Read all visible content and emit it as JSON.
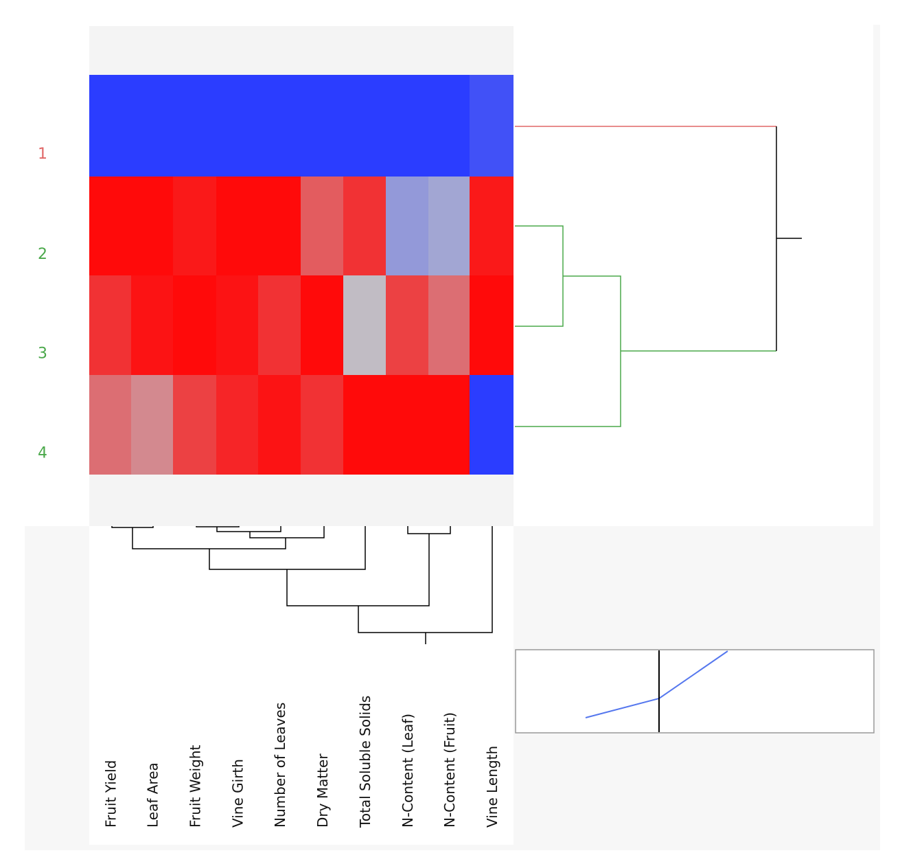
{
  "chart_data": {
    "type": "heatmap",
    "title": "",
    "rows": [
      {
        "label": "1",
        "cluster_color": "#e06666"
      },
      {
        "label": "2",
        "cluster_color": "#4aa84a"
      },
      {
        "label": "3",
        "cluster_color": "#4aa84a"
      },
      {
        "label": "4",
        "cluster_color": "#4aa84a"
      }
    ],
    "columns": [
      "Fruit Yield",
      "Leaf Area",
      "Fruit Weight",
      "Vine Girth",
      "Number of Leaves",
      "Dry Matter",
      "Total Soluble Solids",
      "N-Content (Leaf)",
      "N-Content (Fruit)",
      "Vine Length"
    ],
    "values": [
      [
        -1.0,
        -1.0,
        -1.0,
        -1.0,
        -1.0,
        -1.0,
        -1.0,
        -1.0,
        -1.0,
        -0.85
      ],
      [
        1.0,
        1.0,
        0.92,
        1.0,
        1.0,
        0.55,
        0.78,
        -0.3,
        -0.2,
        0.92
      ],
      [
        0.78,
        0.95,
        1.0,
        0.95,
        0.78,
        1.0,
        0.02,
        0.7,
        0.45,
        1.0
      ],
      [
        0.45,
        0.3,
        0.7,
        0.85,
        0.95,
        0.78,
        1.0,
        1.0,
        1.0,
        -1.0
      ]
    ],
    "color_scale": {
      "low": "#2b3dff",
      "mid": "#c0c0c8",
      "high": "#ff0a0a"
    },
    "row_dendrogram": {
      "merges": [
        {
          "a": "2",
          "b": "3",
          "color": "#4aa84a"
        },
        {
          "a": "2+3",
          "b": "4",
          "color": "#4aa84a"
        },
        {
          "a": "1",
          "b": "2+3+4",
          "color": "#000000"
        }
      ]
    },
    "column_dendrogram": {
      "color": "#000000"
    },
    "distance_plot": {
      "line_color": "#5577ee",
      "cut_line_color": "#000000"
    }
  }
}
